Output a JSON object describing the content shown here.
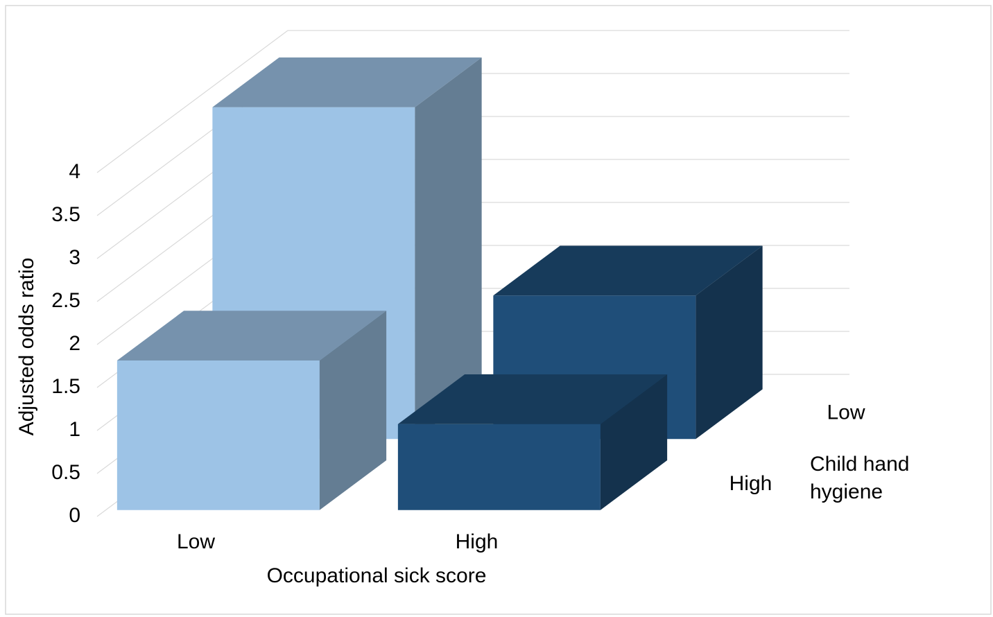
{
  "chart_data": {
    "type": "bar3d",
    "y_label": "Adjusted odds ratio",
    "x_label": "Occupational sick score",
    "z_label": "Child hand hygiene",
    "categories": [
      "Low",
      "High"
    ],
    "colors": [
      "#9dc3e6",
      "#1f4e79"
    ],
    "series": [
      {
        "name": "Low",
        "values": [
          3.86,
          1.67
        ]
      },
      {
        "name": "High",
        "values": [
          1.74,
          1.0
        ]
      }
    ],
    "ylim": [
      0,
      4
    ],
    "yticks": [
      0,
      0.5,
      1,
      1.5,
      2,
      2.5,
      3,
      3.5,
      4
    ],
    "grid": true
  }
}
